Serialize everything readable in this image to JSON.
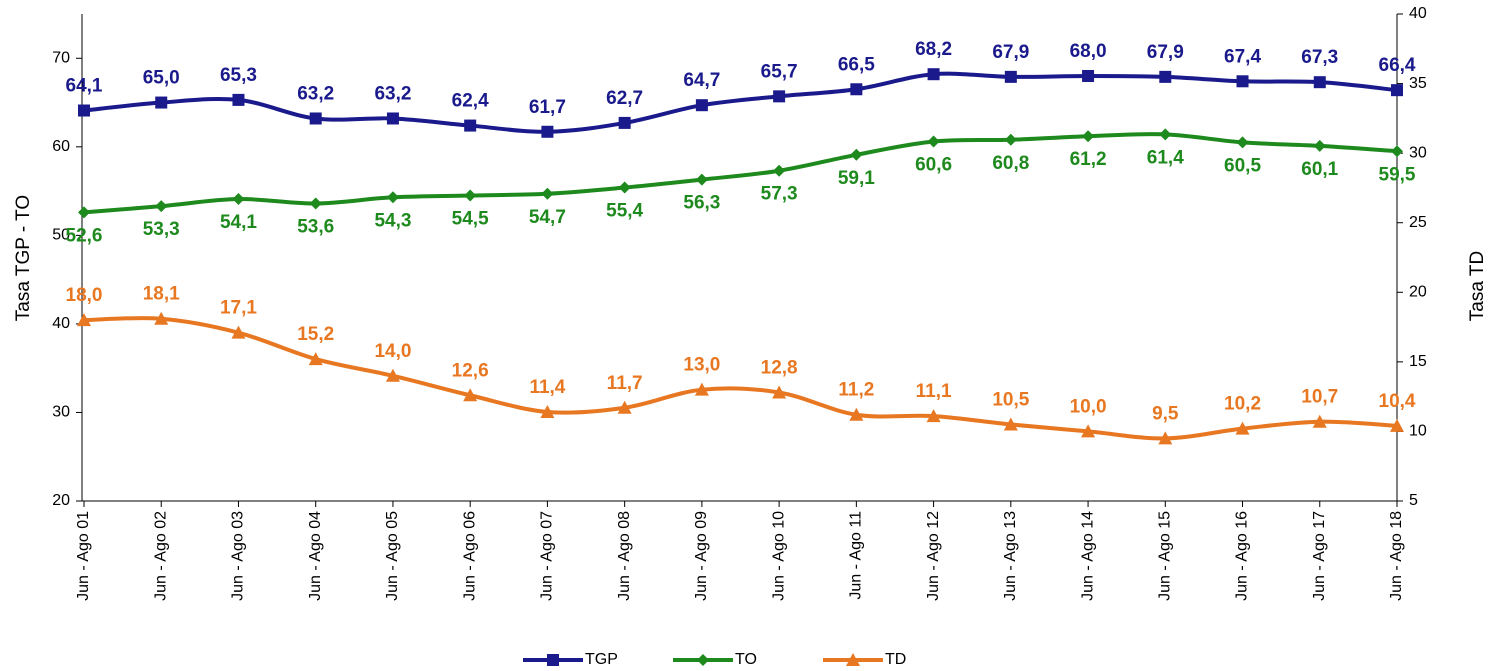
{
  "chart_data": {
    "type": "line",
    "categories": [
      "Jun - Ago 01",
      "Jun - Ago 02",
      "Jun - Ago 03",
      "Jun - Ago 04",
      "Jun - Ago 05",
      "Jun - Ago 06",
      "Jun - Ago 07",
      "Jun - Ago 08",
      "Jun - Ago 09",
      "Jun - Ago 10",
      "Jun - Ago 11",
      "Jun - Ago 12",
      "Jun - Ago 13",
      "Jun - Ago 14",
      "Jun - Ago 15",
      "Jun - Ago 16",
      "Jun - Ago 17",
      "Jun - Ago 18"
    ],
    "y_label": "Tasa TGP - TO",
    "y2_label": "Tasa TD",
    "ylim": [
      20,
      75
    ],
    "yticks": [
      20,
      30,
      40,
      50,
      60,
      70
    ],
    "y2lim": [
      5,
      40
    ],
    "y2ticks": [
      5,
      10,
      15,
      20,
      25,
      30,
      35,
      40
    ],
    "legend": "bottom",
    "series": [
      {
        "name": "TGP",
        "color": "#1a1a8c",
        "marker": "square",
        "label_position": "above",
        "values": [
          64.1,
          65.0,
          65.3,
          63.2,
          63.2,
          62.4,
          61.7,
          62.7,
          64.7,
          65.7,
          66.5,
          68.2,
          67.9,
          68.0,
          67.9,
          67.4,
          67.3,
          66.4
        ],
        "value_labels": [
          "64,1",
          "65,0",
          "65,3",
          "63,2",
          "63,2",
          "62,4",
          "61,7",
          "62,7",
          "64,7",
          "65,7",
          "66,5",
          "68,2",
          "67,9",
          "68,0",
          "67,9",
          "67,4",
          "67,3",
          "66,4"
        ]
      },
      {
        "name": "TO",
        "color": "#1e8a1e",
        "marker": "diamond",
        "label_position": "below",
        "values": [
          52.6,
          53.3,
          54.1,
          53.6,
          54.3,
          54.5,
          54.7,
          55.4,
          56.3,
          57.3,
          59.1,
          60.6,
          60.8,
          61.2,
          61.4,
          60.5,
          60.1,
          59.5
        ],
        "value_labels": [
          "52,6",
          "53,3",
          "54,1",
          "53,6",
          "54,3",
          "54,5",
          "54,7",
          "55,4",
          "56,3",
          "57,3",
          "59,1",
          "60,6",
          "60,8",
          "61,2",
          "61,4",
          "60,5",
          "60,1",
          "59,5"
        ]
      },
      {
        "name": "TD",
        "color": "#e87722",
        "marker": "triangle",
        "axis": "y2",
        "label_position": "above",
        "values": [
          18.0,
          18.1,
          17.1,
          15.2,
          14.0,
          12.6,
          11.4,
          11.7,
          13.0,
          12.8,
          11.2,
          11.1,
          10.5,
          10.0,
          9.5,
          10.2,
          10.7,
          10.4
        ],
        "value_labels": [
          "18,0",
          "18,1",
          "17,1",
          "15,2",
          "14,0",
          "12,6",
          "11,4",
          "11,7",
          "13,0",
          "12,8",
          "11,2",
          "11,1",
          "10,5",
          "10,0",
          "9,5",
          "10,2",
          "10,7",
          "10,4"
        ]
      }
    ]
  }
}
